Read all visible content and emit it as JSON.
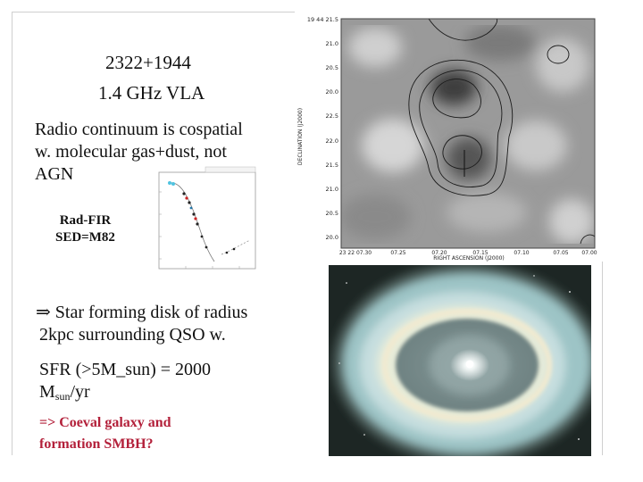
{
  "slide": {
    "title_line1": "2322+1944",
    "title_line2": "1.4 GHz VLA",
    "para1_line1": "Radio continuum is cospatial",
    "para1_line2": "w. molecular gas+dust, not",
    "para1_line3": "AGN",
    "rad_fir_line1": "Rad-FIR",
    "rad_fir_line2": "SED=M82",
    "arrow_symbol": "⇒",
    "star_line1": "Star forming disk of radius",
    "star_line2": "2kpc surrounding QSO w.",
    "sfr_line1": "SFR (>5M_sun) = 2000",
    "sfr_line2_prefix": "M",
    "sfr_line2_sub": "sun",
    "sfr_line2_suffix": "/yr",
    "bottom_line1": "=> Coeval galaxy and",
    "bottom_line2": "formation SMBH?"
  },
  "radio_map": {
    "ylabel": "DECLINATION (J2000)",
    "xlabel": "RIGHT ASCENSION (J2000)",
    "y_ticks": [
      "19 44 21.5",
      "21.0",
      "20.5",
      "20.0",
      "22.5",
      "22.0",
      "21.5",
      "21.0",
      "20.5",
      "20.0"
    ],
    "x_ticks": [
      "23 22 07.30",
      "07.25",
      "07.20",
      "07.15",
      "07.10",
      "07.05",
      "07.00"
    ]
  },
  "colors": {
    "bottom_text": "#b3203a",
    "frame": "#cfcfcf"
  }
}
